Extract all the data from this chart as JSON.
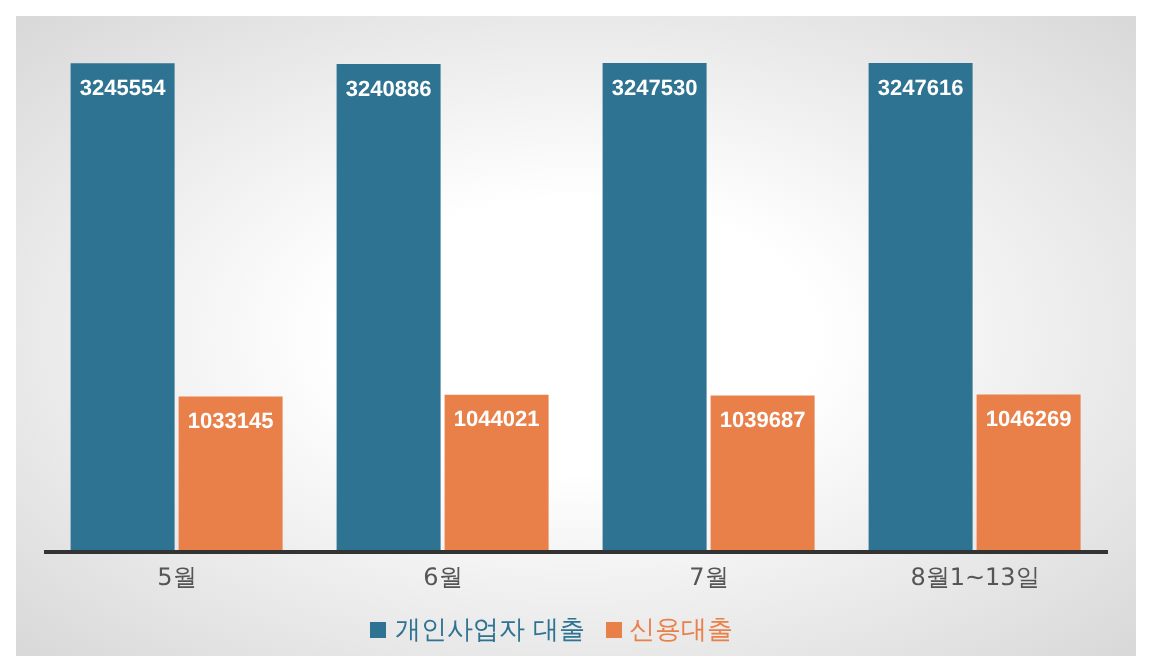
{
  "chart_data": {
    "type": "bar",
    "categories": [
      "5월",
      "6월",
      "7월",
      "8월1~13일"
    ],
    "series": [
      {
        "name": "개인사업자 대출",
        "color": "#2e7391",
        "values": [
          3245554,
          3240886,
          3247530,
          3247616
        ]
      },
      {
        "name": "신용대출",
        "color": "#e9804a",
        "values": [
          1033145,
          1044021,
          1039687,
          1046269
        ]
      }
    ],
    "tick_labels": "x",
    "legend": "bottom",
    "data_labels": true
  }
}
